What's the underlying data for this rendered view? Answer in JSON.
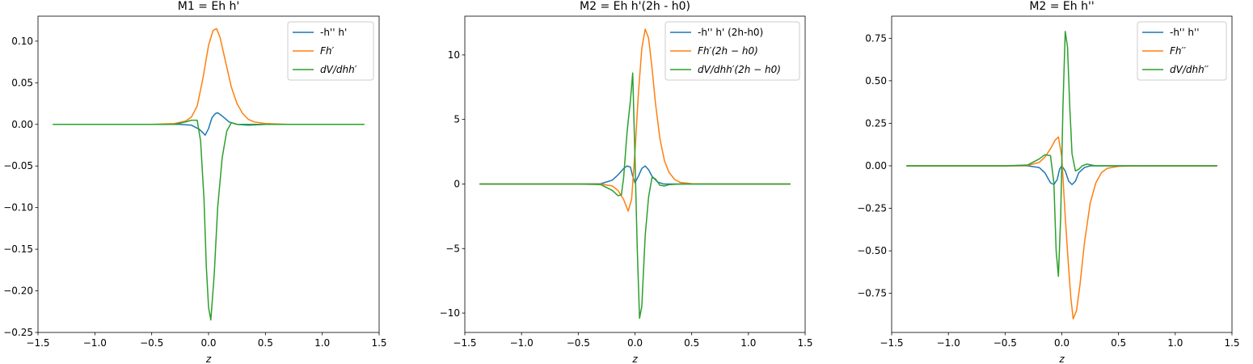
{
  "figure": {
    "background": "#ffffff"
  },
  "colors": {
    "blue": "#1f77b4",
    "orange": "#ff7f0e",
    "green": "#2ca02c"
  },
  "chart_data": [
    {
      "type": "line",
      "title": "M1 = Eh h'",
      "xlabel": "z",
      "ylabel": "",
      "xlim": [
        -1.5,
        1.5
      ],
      "ylim": [
        -0.25,
        0.13
      ],
      "xticks": [
        -1.5,
        -1.0,
        -0.5,
        0.0,
        0.5,
        1.0,
        1.5
      ],
      "xtick_labels": [
        "−1.5",
        "−1.0",
        "−0.5",
        "0.0",
        "0.5",
        "1.0",
        "1.5"
      ],
      "yticks": [
        -0.25,
        -0.2,
        -0.15,
        -0.1,
        -0.05,
        0.0,
        0.05,
        0.1
      ],
      "ytick_labels": [
        "−0.25",
        "−0.20",
        "−0.15",
        "−0.10",
        "−0.05",
        "0.00",
        "0.05",
        "0.10"
      ],
      "legend_position": "upper-right",
      "series": [
        {
          "name": "-h'' h'",
          "color": "#1f77b4",
          "x": [
            -1.37,
            -0.5,
            -0.35,
            -0.25,
            -0.15,
            -0.08,
            -0.05,
            -0.03,
            0.0,
            0.03,
            0.06,
            0.08,
            0.12,
            0.18,
            0.25,
            0.35,
            0.5,
            1.37
          ],
          "y": [
            0,
            0,
            0,
            0,
            -0.001,
            -0.006,
            -0.01,
            -0.013,
            -0.005,
            0.008,
            0.013,
            0.014,
            0.01,
            0.003,
            0.0,
            -0.001,
            0,
            0
          ]
        },
        {
          "name": "Fh′",
          "name_math": true,
          "color": "#ff7f0e",
          "x": [
            -1.37,
            -0.5,
            -0.3,
            -0.2,
            -0.15,
            -0.1,
            -0.05,
            0.0,
            0.04,
            0.07,
            0.1,
            0.15,
            0.2,
            0.25,
            0.3,
            0.35,
            0.4,
            0.5,
            0.7,
            1.37
          ],
          "y": [
            0,
            0,
            0.001,
            0.004,
            0.009,
            0.022,
            0.055,
            0.095,
            0.113,
            0.115,
            0.105,
            0.075,
            0.045,
            0.025,
            0.013,
            0.006,
            0.003,
            0.001,
            0,
            0
          ],
          "label": "Fh′"
        },
        {
          "name": "dV/dhh′",
          "name_math": true,
          "color": "#2ca02c",
          "x": [
            -1.37,
            -0.5,
            -0.3,
            -0.2,
            -0.15,
            -0.1,
            -0.07,
            -0.04,
            -0.02,
            0.0,
            0.02,
            0.05,
            0.08,
            0.12,
            0.16,
            0.2,
            0.25,
            0.3,
            0.5,
            1.37
          ],
          "y": [
            0,
            0,
            0.0,
            0.003,
            0.005,
            0.005,
            -0.02,
            -0.09,
            -0.17,
            -0.22,
            -0.235,
            -0.18,
            -0.1,
            -0.04,
            -0.008,
            0.002,
            0.0,
            0.0,
            0,
            0
          ]
        }
      ]
    },
    {
      "type": "line",
      "title": "M2 = Eh h'(2h - h0)",
      "xlabel": "z",
      "ylabel": "",
      "xlim": [
        -1.5,
        1.5
      ],
      "ylim": [
        -11.5,
        13.0
      ],
      "xticks": [
        -1.5,
        -1.0,
        -0.5,
        0.0,
        0.5,
        1.0,
        1.5
      ],
      "xtick_labels": [
        "−1.5",
        "−1.0",
        "−0.5",
        "0.0",
        "0.5",
        "1.0",
        "1.5"
      ],
      "yticks": [
        -10,
        -5,
        0,
        5,
        10
      ],
      "ytick_labels": [
        "−10",
        "−5",
        "0",
        "5",
        "10"
      ],
      "legend_position": "upper-right",
      "series": [
        {
          "name": "-h'' h' (2h-h0)",
          "color": "#1f77b4",
          "x": [
            -1.37,
            -0.5,
            -0.3,
            -0.2,
            -0.15,
            -0.1,
            -0.07,
            -0.04,
            -0.02,
            0.0,
            0.03,
            0.06,
            0.09,
            0.12,
            0.15,
            0.2,
            0.25,
            0.3,
            0.5,
            1.37
          ],
          "y": [
            0,
            0,
            0.02,
            0.3,
            0.7,
            1.2,
            1.4,
            1.3,
            0.6,
            0.1,
            0.6,
            1.2,
            1.4,
            1.1,
            0.6,
            0.15,
            0.0,
            0.0,
            0,
            0
          ],
          "label": "-h'' h' (2h-h0)"
        },
        {
          "name": "Fh′(2h − h0)",
          "name_math": true,
          "color": "#ff7f0e",
          "x": [
            -1.37,
            -0.5,
            -0.3,
            -0.2,
            -0.15,
            -0.1,
            -0.06,
            -0.03,
            0.0,
            0.03,
            0.06,
            0.09,
            0.12,
            0.15,
            0.18,
            0.22,
            0.26,
            0.3,
            0.35,
            0.4,
            0.5,
            0.7,
            1.37
          ],
          "y": [
            0,
            0,
            -0.01,
            -0.15,
            -0.5,
            -1.2,
            -2.1,
            -1.2,
            2.5,
            7.0,
            10.5,
            12.0,
            11.3,
            9.0,
            6.3,
            3.5,
            1.8,
            0.9,
            0.35,
            0.12,
            0.02,
            0,
            0
          ]
        },
        {
          "name": "dV/dhh′(2h − h0)",
          "name_math": true,
          "color": "#2ca02c",
          "x": [
            -1.37,
            -0.5,
            -0.3,
            -0.2,
            -0.15,
            -0.12,
            -0.1,
            -0.07,
            -0.04,
            -0.02,
            0.0,
            0.02,
            0.04,
            0.06,
            0.09,
            0.12,
            0.15,
            0.18,
            0.22,
            0.26,
            0.3,
            0.4,
            0.5,
            1.37
          ],
          "y": [
            0,
            0,
            -0.05,
            -0.5,
            -0.9,
            -0.85,
            0.5,
            4.0,
            6.5,
            8.6,
            2.0,
            -5.0,
            -10.4,
            -9.5,
            -4.0,
            -1.0,
            0.5,
            0.4,
            -0.1,
            -0.15,
            -0.05,
            0.0,
            0,
            0
          ]
        }
      ]
    },
    {
      "type": "line",
      "title": "M2 = Eh h''",
      "xlabel": "z",
      "ylabel": "",
      "xlim": [
        -1.5,
        1.5
      ],
      "ylim": [
        -0.98,
        0.88
      ],
      "xticks": [
        -1.5,
        -1.0,
        -0.5,
        0.0,
        0.5,
        1.0,
        1.5
      ],
      "xtick_labels": [
        "−1.5",
        "−1.0",
        "−0.5",
        "0.0",
        "0.5",
        "1.0",
        "1.5"
      ],
      "yticks": [
        -0.75,
        -0.5,
        -0.25,
        0.0,
        0.25,
        0.5,
        0.75
      ],
      "ytick_labels": [
        "−0.75",
        "−0.50",
        "−0.25",
        "0.00",
        "0.25",
        "0.50",
        "0.75"
      ],
      "legend_position": "upper-right",
      "series": [
        {
          "name": "-h'' h''",
          "color": "#1f77b4",
          "x": [
            -1.37,
            -0.5,
            -0.3,
            -0.2,
            -0.15,
            -0.1,
            -0.07,
            -0.04,
            -0.02,
            0.0,
            0.03,
            0.06,
            0.09,
            0.12,
            0.15,
            0.2,
            0.25,
            0.3,
            0.5,
            1.37
          ],
          "y": [
            0,
            0,
            0,
            -0.01,
            -0.04,
            -0.1,
            -0.11,
            -0.08,
            -0.02,
            0.0,
            -0.03,
            -0.09,
            -0.11,
            -0.09,
            -0.04,
            -0.01,
            0.0,
            0.0,
            0,
            0
          ]
        },
        {
          "name": "Fh′′",
          "name_math": true,
          "color": "#ff7f0e",
          "x": [
            -1.37,
            -0.5,
            -0.3,
            -0.2,
            -0.15,
            -0.1,
            -0.06,
            -0.03,
            0.0,
            0.03,
            0.06,
            0.08,
            0.1,
            0.13,
            0.16,
            0.2,
            0.25,
            0.3,
            0.35,
            0.4,
            0.5,
            0.7,
            1.37
          ],
          "y": [
            0,
            0,
            0.002,
            0.02,
            0.05,
            0.1,
            0.15,
            0.17,
            0.05,
            -0.3,
            -0.6,
            -0.78,
            -0.9,
            -0.85,
            -0.7,
            -0.45,
            -0.22,
            -0.1,
            -0.04,
            -0.015,
            -0.003,
            0,
            0
          ]
        },
        {
          "name": "dV/dhh′′",
          "name_math": true,
          "color": "#2ca02c",
          "x": [
            -1.37,
            -0.5,
            -0.3,
            -0.2,
            -0.15,
            -0.1,
            -0.07,
            -0.05,
            -0.03,
            -0.01,
            0.01,
            0.03,
            0.05,
            0.07,
            0.09,
            0.12,
            0.15,
            0.18,
            0.22,
            0.26,
            0.3,
            0.4,
            0.5,
            1.37
          ],
          "y": [
            0,
            0,
            0.005,
            0.04,
            0.065,
            0.06,
            -0.1,
            -0.5,
            -0.65,
            -0.3,
            0.35,
            0.79,
            0.7,
            0.35,
            0.07,
            -0.03,
            -0.02,
            0.0,
            0.01,
            0.005,
            0.0,
            0.0,
            0,
            0
          ]
        }
      ]
    }
  ]
}
